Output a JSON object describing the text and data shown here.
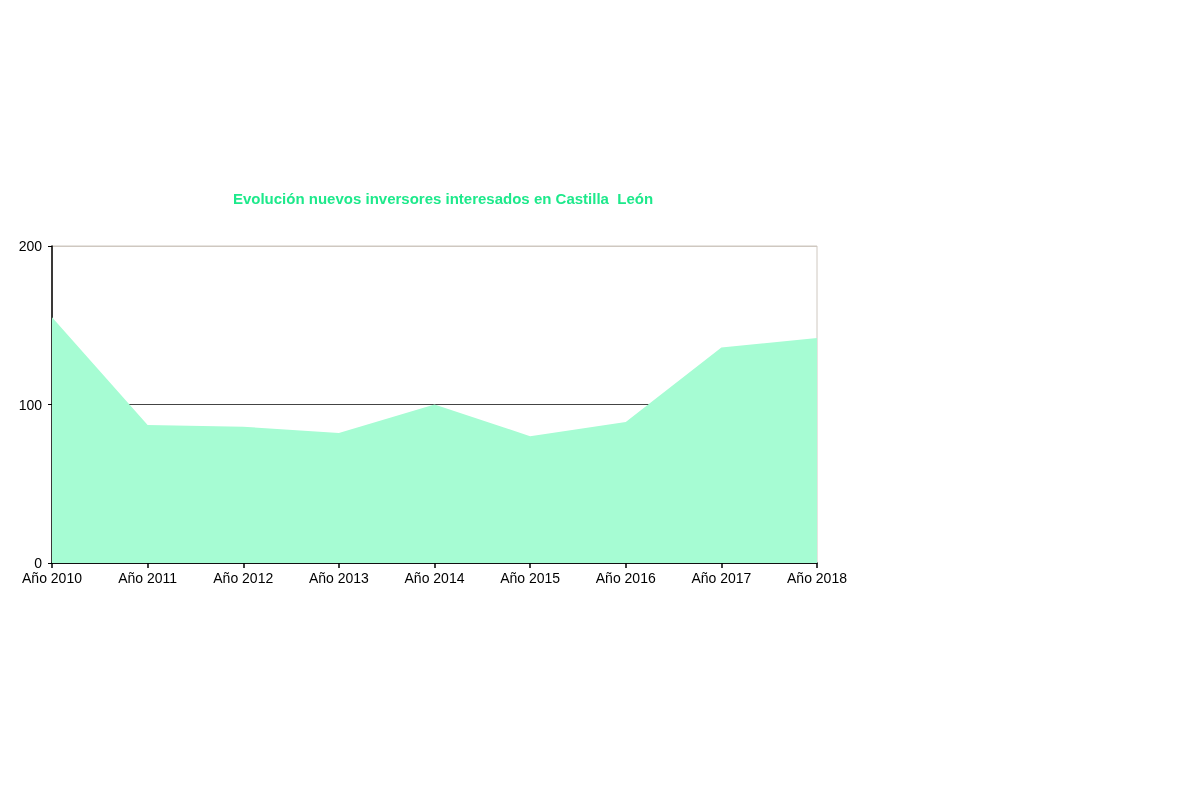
{
  "chart_data": {
    "type": "area",
    "title": "Evolución nuevos inversores interesados en Castilla  León",
    "categories": [
      "Año 2010",
      "Año 2011",
      "Año 2012",
      "Año 2013",
      "Año 2014",
      "Año 2015",
      "Año 2016",
      "Año 2017",
      "Año 2018"
    ],
    "series": [
      {
        "color": "#a6fcd3",
        "values": [
          155,
          87,
          86,
          82,
          100,
          80,
          89,
          136,
          142
        ]
      }
    ],
    "ylim": [
      0,
      200
    ],
    "yticks": [
      0,
      100,
      200
    ],
    "grid": "y",
    "marker": "none"
  }
}
